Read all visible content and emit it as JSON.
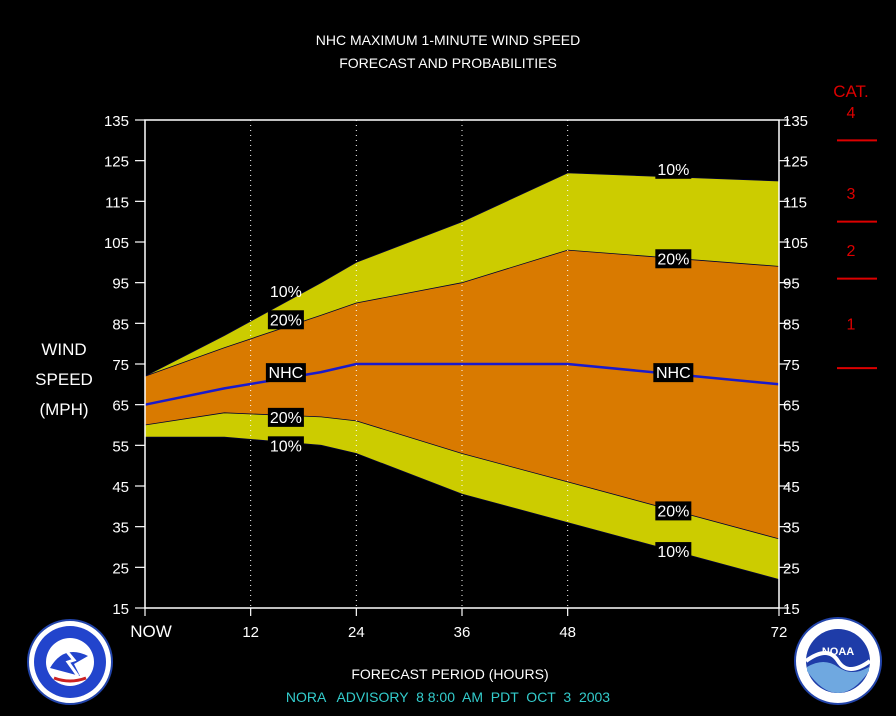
{
  "colors": {
    "background": "#000000",
    "text": "#ffffff",
    "outer_band": "#cccc00",
    "inner_band": "#d97a00",
    "nhc_line": "#1a1acc",
    "category": "#dd0000",
    "advisory": "#33cccc"
  },
  "chart_data": {
    "type": "area",
    "title": "NHC MAXIMUM 1-MINUTE WIND SPEED",
    "subtitle": "FORECAST AND PROBABILITIES",
    "xlabel": "FORECAST PERIOD (HOURS)",
    "ylabel_lines": [
      "WIND",
      "SPEED",
      "(MPH)"
    ],
    "ylim": [
      15,
      135
    ],
    "xlim": [
      0,
      72
    ],
    "y_ticks": [
      "135",
      "125",
      "115",
      "105",
      "95",
      "85",
      "75",
      "65",
      "55",
      "45",
      "35",
      "25",
      "15"
    ],
    "x_ticks": [
      {
        "x": 0,
        "label": "NOW"
      },
      {
        "x": 12,
        "label": "12"
      },
      {
        "x": 24,
        "label": "24"
      },
      {
        "x": 36,
        "label": "36"
      },
      {
        "x": 48,
        "label": "48"
      },
      {
        "x": 72,
        "label": "72"
      }
    ],
    "grid_x": [
      12,
      24,
      36,
      48
    ],
    "x": [
      0,
      9,
      20,
      24,
      36,
      48,
      72
    ],
    "series": [
      {
        "name": "10% upper",
        "values": [
          72,
          82,
          95,
          100,
          110,
          122,
          120
        ]
      },
      {
        "name": "20% upper",
        "values": [
          72,
          79,
          87,
          90,
          95,
          103,
          99
        ]
      },
      {
        "name": "NHC",
        "values": [
          65,
          69,
          73,
          75,
          75,
          75,
          70
        ]
      },
      {
        "name": "20% lower",
        "values": [
          60,
          63,
          62,
          61,
          53,
          46,
          32
        ]
      },
      {
        "name": "10% lower",
        "values": [
          57,
          57,
          55,
          53,
          43,
          36,
          22
        ]
      }
    ],
    "annotations": [
      {
        "text": "10%",
        "x": 16,
        "y": 93,
        "boxed": false
      },
      {
        "text": "20%",
        "x": 16,
        "y": 86,
        "boxed": true
      },
      {
        "text": "NHC",
        "x": 16,
        "y": 73,
        "boxed": true
      },
      {
        "text": "20%",
        "x": 16,
        "y": 62,
        "boxed": true
      },
      {
        "text": "10%",
        "x": 16,
        "y": 55,
        "boxed": true
      },
      {
        "text": "10%",
        "x": 60,
        "y": 123,
        "boxed": true
      },
      {
        "text": "20%",
        "x": 60,
        "y": 101,
        "boxed": true
      },
      {
        "text": "NHC",
        "x": 60,
        "y": 73,
        "boxed": true
      },
      {
        "text": "20%",
        "x": 60,
        "y": 39,
        "boxed": true
      },
      {
        "text": "10%",
        "x": 60,
        "y": 29,
        "boxed": true
      }
    ],
    "category_scale": {
      "title": "CAT.",
      "boundaries_mph": [
        130,
        110,
        96,
        74
      ],
      "labels": [
        {
          "text": "4",
          "y": 137
        },
        {
          "text": "3",
          "y": 117
        },
        {
          "text": "2",
          "y": 103
        },
        {
          "text": "1",
          "y": 85
        }
      ]
    }
  },
  "footer": {
    "advisory": "NORA   ADVISORY  8 8:00  AM  PDT  OCT  3  2003"
  },
  "logos": {
    "nws": "NATIONAL WEATHER SERVICE",
    "noaa": "NOAA"
  }
}
